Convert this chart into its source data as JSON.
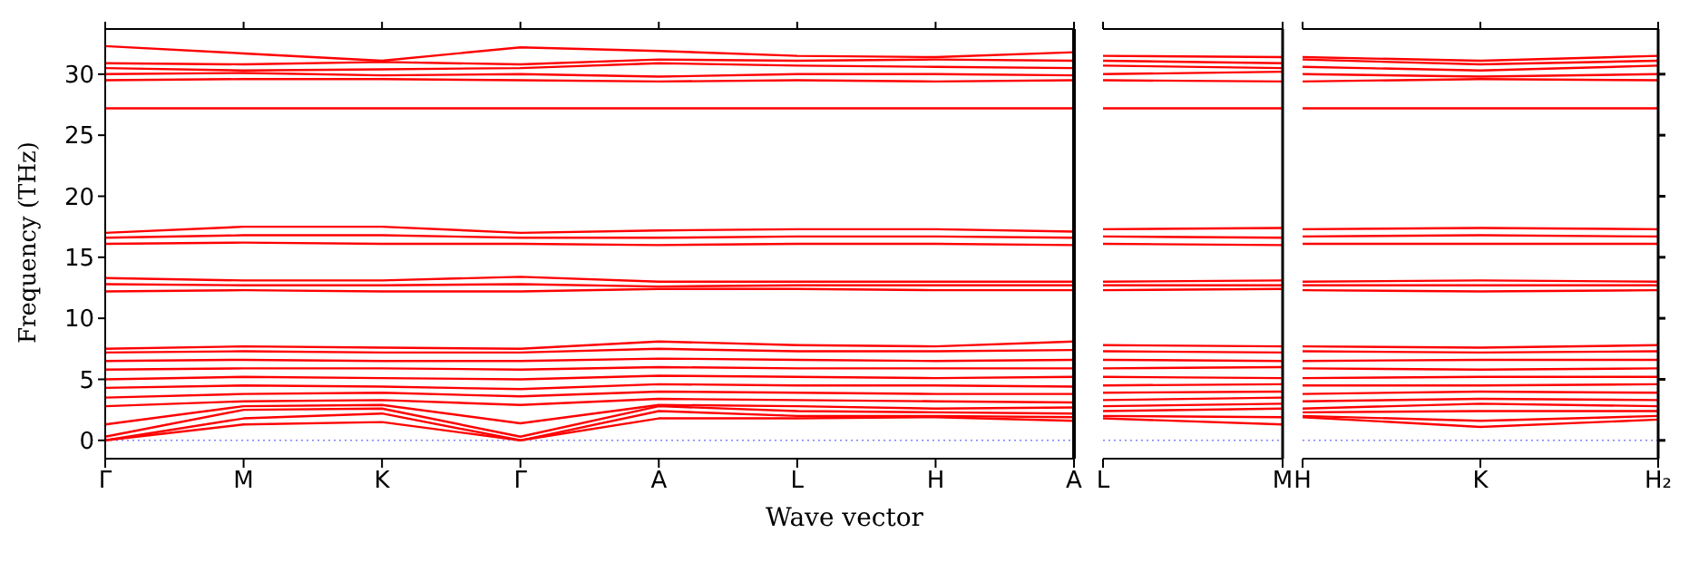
{
  "chart_data": [
    {
      "type": "line",
      "ylabel": "Frequency (THz)",
      "xlabel": "Wave vector",
      "marker": "none",
      "line_style": "solid",
      "categories": [
        "Γ",
        "M",
        "K",
        "Γ",
        "A",
        "L",
        "H",
        "A"
      ],
      "ylim": [
        -1.5,
        33.7
      ],
      "yticks": [
        0,
        5,
        10,
        15,
        20,
        25,
        30
      ],
      "ref_lines": [
        {
          "axis": "y",
          "value": 0,
          "color": "#8080ff",
          "line_style": "dotted"
        }
      ],
      "series": [
        {
          "color": "#ff0000",
          "values": [
            0,
            1.3,
            1.5,
            0,
            1.8,
            1.8,
            1.9,
            1.6
          ]
        },
        {
          "color": "#ff0000",
          "values": [
            0,
            1.8,
            2.2,
            0,
            2.4,
            2.0,
            2.0,
            1.9
          ]
        },
        {
          "color": "#ff0000",
          "values": [
            0.3,
            2.5,
            2.6,
            0.3,
            2.8,
            2.4,
            2.3,
            2.2
          ]
        },
        {
          "color": "#ff0000",
          "values": [
            1.3,
            2.8,
            2.9,
            1.4,
            2.9,
            2.8,
            2.6,
            2.7
          ]
        },
        {
          "color": "#ff0000",
          "values": [
            2.8,
            3.2,
            3.3,
            2.9,
            3.4,
            3.3,
            3.2,
            3.1
          ]
        },
        {
          "color": "#ff0000",
          "values": [
            3.5,
            3.8,
            3.9,
            3.6,
            4.0,
            3.9,
            3.8,
            3.8
          ]
        },
        {
          "color": "#ff0000",
          "values": [
            4.3,
            4.5,
            4.4,
            4.2,
            4.6,
            4.5,
            4.5,
            4.4
          ]
        },
        {
          "color": "#ff0000",
          "values": [
            5.0,
            5.2,
            5.1,
            5.0,
            5.3,
            5.2,
            5.1,
            5.2
          ]
        },
        {
          "color": "#ff0000",
          "values": [
            5.8,
            5.9,
            5.9,
            5.8,
            6.0,
            5.9,
            5.9,
            5.9
          ]
        },
        {
          "color": "#ff0000",
          "values": [
            6.5,
            6.6,
            6.5,
            6.5,
            6.7,
            6.6,
            6.5,
            6.6
          ]
        },
        {
          "color": "#ff0000",
          "values": [
            7.2,
            7.3,
            7.2,
            7.2,
            7.5,
            7.3,
            7.3,
            7.4
          ]
        },
        {
          "color": "#ff0000",
          "values": [
            7.5,
            7.7,
            7.6,
            7.5,
            8.1,
            7.8,
            7.7,
            8.1
          ]
        },
        {
          "color": "#ff0000",
          "values": [
            12.2,
            12.3,
            12.2,
            12.2,
            12.4,
            12.4,
            12.3,
            12.3
          ]
        },
        {
          "color": "#ff0000",
          "values": [
            12.8,
            12.7,
            12.7,
            12.8,
            12.6,
            12.7,
            12.7,
            12.7
          ]
        },
        {
          "color": "#ff0000",
          "values": [
            13.3,
            13.1,
            13.1,
            13.4,
            13.0,
            13.0,
            13.0,
            13.0
          ]
        },
        {
          "color": "#ff0000",
          "values": [
            16.1,
            16.2,
            16.1,
            16.1,
            16.0,
            16.1,
            16.1,
            16.0
          ]
        },
        {
          "color": "#ff0000",
          "values": [
            16.6,
            16.8,
            16.8,
            16.6,
            16.6,
            16.7,
            16.7,
            16.6
          ]
        },
        {
          "color": "#ff0000",
          "values": [
            17.0,
            17.5,
            17.5,
            17.0,
            17.2,
            17.3,
            17.3,
            17.1
          ]
        },
        {
          "color": "#ff0000",
          "values": [
            27.2,
            27.2,
            27.2,
            27.2,
            27.2,
            27.2,
            27.2,
            27.2
          ]
        },
        {
          "color": "#ff0000",
          "values": [
            29.5,
            29.6,
            29.6,
            29.5,
            29.4,
            29.5,
            29.4,
            29.5
          ]
        },
        {
          "color": "#ff0000",
          "values": [
            30.0,
            30.1,
            29.9,
            30.0,
            29.8,
            30.0,
            30.0,
            29.9
          ]
        },
        {
          "color": "#ff0000",
          "values": [
            30.5,
            30.3,
            30.4,
            30.5,
            30.9,
            30.7,
            30.6,
            30.5
          ]
        },
        {
          "color": "#ff0000",
          "values": [
            30.9,
            30.8,
            31.0,
            30.8,
            31.2,
            31.1,
            31.2,
            31.1
          ]
        },
        {
          "color": "#ff0000",
          "values": [
            32.3,
            31.7,
            31.1,
            32.2,
            31.9,
            31.5,
            31.4,
            31.8
          ]
        }
      ]
    },
    {
      "type": "line",
      "marker": "none",
      "line_style": "solid",
      "tick_labels": "x",
      "categories": [
        "L",
        "M"
      ],
      "ylim": [
        -1.5,
        33.7
      ],
      "yticks": [
        0,
        5,
        10,
        15,
        20,
        25,
        30
      ],
      "ref_lines": [
        {
          "axis": "y",
          "value": 0,
          "color": "#8080ff",
          "line_style": "dotted"
        }
      ],
      "series": [
        {
          "color": "#ff0000",
          "values": [
            1.8,
            1.3
          ]
        },
        {
          "color": "#ff0000",
          "values": [
            2.0,
            1.9
          ]
        },
        {
          "color": "#ff0000",
          "values": [
            2.4,
            2.6
          ]
        },
        {
          "color": "#ff0000",
          "values": [
            2.8,
            3.0
          ]
        },
        {
          "color": "#ff0000",
          "values": [
            3.3,
            3.5
          ]
        },
        {
          "color": "#ff0000",
          "values": [
            3.9,
            4.0
          ]
        },
        {
          "color": "#ff0000",
          "values": [
            4.5,
            4.6
          ]
        },
        {
          "color": "#ff0000",
          "values": [
            5.2,
            5.1
          ]
        },
        {
          "color": "#ff0000",
          "values": [
            5.9,
            6.0
          ]
        },
        {
          "color": "#ff0000",
          "values": [
            6.6,
            6.5
          ]
        },
        {
          "color": "#ff0000",
          "values": [
            7.3,
            7.2
          ]
        },
        {
          "color": "#ff0000",
          "values": [
            7.8,
            7.7
          ]
        },
        {
          "color": "#ff0000",
          "values": [
            12.3,
            12.4
          ]
        },
        {
          "color": "#ff0000",
          "values": [
            12.7,
            12.7
          ]
        },
        {
          "color": "#ff0000",
          "values": [
            13.0,
            13.1
          ]
        },
        {
          "color": "#ff0000",
          "values": [
            16.1,
            16.0
          ]
        },
        {
          "color": "#ff0000",
          "values": [
            16.7,
            16.6
          ]
        },
        {
          "color": "#ff0000",
          "values": [
            17.3,
            17.4
          ]
        },
        {
          "color": "#ff0000",
          "values": [
            27.2,
            27.2
          ]
        },
        {
          "color": "#ff0000",
          "values": [
            29.5,
            29.4
          ]
        },
        {
          "color": "#ff0000",
          "values": [
            30.0,
            30.2
          ]
        },
        {
          "color": "#ff0000",
          "values": [
            30.7,
            30.5
          ]
        },
        {
          "color": "#ff0000",
          "values": [
            31.1,
            30.9
          ]
        },
        {
          "color": "#ff0000",
          "values": [
            31.5,
            31.4
          ]
        }
      ]
    },
    {
      "type": "line",
      "marker": "none",
      "line_style": "solid",
      "tick_labels": "x",
      "categories": [
        "H",
        "K",
        "H₂"
      ],
      "ylim": [
        -1.5,
        33.7
      ],
      "yticks": [
        0,
        5,
        10,
        15,
        20,
        25,
        30
      ],
      "ref_lines": [
        {
          "axis": "y",
          "value": 0,
          "color": "#8080ff",
          "line_style": "dotted"
        }
      ],
      "series": [
        {
          "color": "#ff0000",
          "values": [
            1.9,
            1.1,
            1.7
          ]
        },
        {
          "color": "#ff0000",
          "values": [
            2.0,
            1.6,
            2.0
          ]
        },
        {
          "color": "#ff0000",
          "values": [
            2.3,
            2.4,
            2.4
          ]
        },
        {
          "color": "#ff0000",
          "values": [
            2.6,
            3.0,
            2.8
          ]
        },
        {
          "color": "#ff0000",
          "values": [
            3.2,
            3.4,
            3.3
          ]
        },
        {
          "color": "#ff0000",
          "values": [
            3.8,
            4.0,
            3.9
          ]
        },
        {
          "color": "#ff0000",
          "values": [
            4.5,
            4.5,
            4.6
          ]
        },
        {
          "color": "#ff0000",
          "values": [
            5.1,
            5.2,
            5.2
          ]
        },
        {
          "color": "#ff0000",
          "values": [
            5.9,
            5.8,
            5.9
          ]
        },
        {
          "color": "#ff0000",
          "values": [
            6.5,
            6.6,
            6.6
          ]
        },
        {
          "color": "#ff0000",
          "values": [
            7.3,
            7.2,
            7.3
          ]
        },
        {
          "color": "#ff0000",
          "values": [
            7.7,
            7.6,
            7.8
          ]
        },
        {
          "color": "#ff0000",
          "values": [
            12.3,
            12.2,
            12.3
          ]
        },
        {
          "color": "#ff0000",
          "values": [
            12.7,
            12.7,
            12.7
          ]
        },
        {
          "color": "#ff0000",
          "values": [
            13.0,
            13.1,
            13.0
          ]
        },
        {
          "color": "#ff0000",
          "values": [
            16.1,
            16.1,
            16.1
          ]
        },
        {
          "color": "#ff0000",
          "values": [
            16.7,
            16.8,
            16.7
          ]
        },
        {
          "color": "#ff0000",
          "values": [
            17.3,
            17.4,
            17.3
          ]
        },
        {
          "color": "#ff0000",
          "values": [
            27.2,
            27.2,
            27.2
          ]
        },
        {
          "color": "#ff0000",
          "values": [
            29.4,
            29.6,
            29.5
          ]
        },
        {
          "color": "#ff0000",
          "values": [
            30.0,
            29.8,
            30.0
          ]
        },
        {
          "color": "#ff0000",
          "values": [
            30.6,
            30.3,
            30.7
          ]
        },
        {
          "color": "#ff0000",
          "values": [
            31.2,
            30.8,
            31.1
          ]
        },
        {
          "color": "#ff0000",
          "values": [
            31.4,
            31.1,
            31.5
          ]
        }
      ]
    }
  ]
}
